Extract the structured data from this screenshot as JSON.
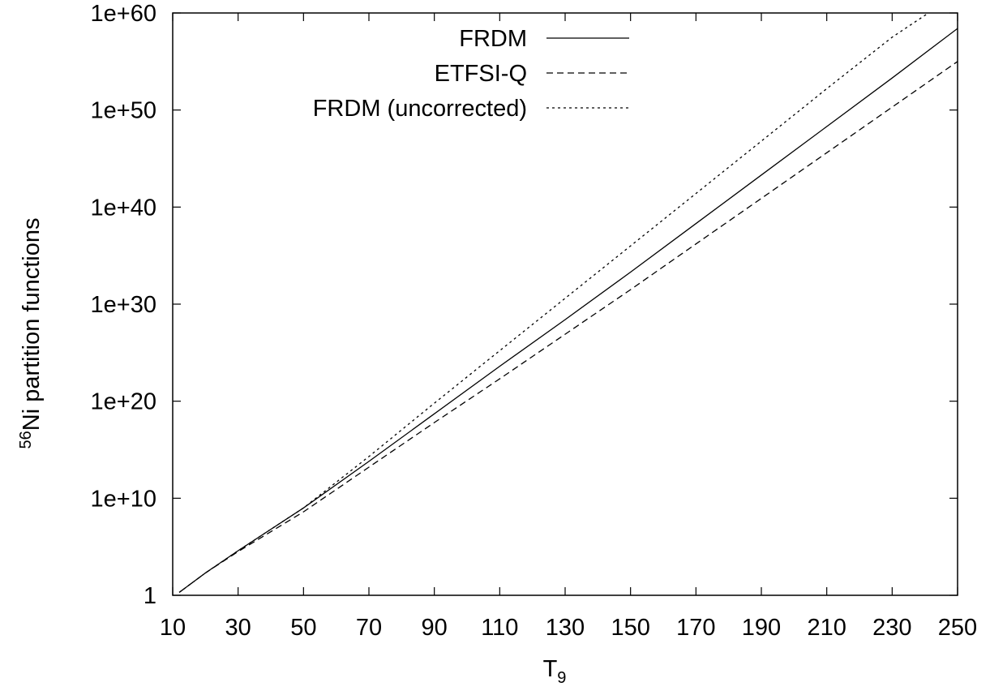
{
  "chart_data": {
    "type": "line",
    "title": "",
    "xlabel": {
      "main": "T",
      "sub": "9"
    },
    "ylabel": {
      "sup": "56",
      "main": "Ni partition functions"
    },
    "xlim": [
      10,
      250
    ],
    "ylim_log10": [
      0,
      60
    ],
    "yscale": "log",
    "grid": false,
    "legend_position": "top-center",
    "x_ticks": [
      10,
      30,
      50,
      70,
      90,
      110,
      130,
      150,
      170,
      190,
      210,
      230,
      250
    ],
    "x_tick_labels": [
      "10",
      "30",
      "50",
      "70",
      "90",
      "110",
      "130",
      "150",
      "170",
      "190",
      "210",
      "230",
      "250"
    ],
    "y_ticks_log10": [
      0,
      10,
      20,
      30,
      40,
      50,
      60
    ],
    "y_tick_labels": [
      "1",
      "1e+10",
      "1e+20",
      "1e+30",
      "1e+40",
      "1e+50",
      "1e+60"
    ],
    "series": [
      {
        "name": "FRDM",
        "style": "solid",
        "x": [
          12,
          20,
          30,
          50,
          70,
          90,
          110,
          130,
          150,
          170,
          190,
          210,
          230,
          250
        ],
        "log10_y": [
          0.3,
          2.3,
          4.6,
          9.0,
          13.8,
          18.7,
          23.6,
          28.4,
          33.3,
          38.3,
          43.3,
          48.3,
          53.3,
          58.4
        ]
      },
      {
        "name": "ETFSI-Q",
        "style": "dashed",
        "x": [
          12,
          20,
          30,
          50,
          70,
          90,
          110,
          130,
          150,
          170,
          190,
          210,
          230,
          250
        ],
        "log10_y": [
          0.3,
          2.3,
          4.5,
          8.6,
          13.2,
          17.8,
          22.3,
          26.9,
          31.5,
          36.2,
          40.9,
          45.6,
          50.3,
          55.0
        ]
      },
      {
        "name": "FRDM (uncorrected)",
        "style": "dotted",
        "x": [
          12,
          20,
          30,
          50,
          70,
          90,
          110,
          130,
          150,
          170,
          190,
          210,
          230,
          250
        ],
        "log10_y": [
          0.3,
          2.3,
          4.6,
          9.0,
          14.3,
          19.8,
          25.2,
          30.6,
          36.0,
          41.4,
          46.8,
          52.2,
          57.5,
          62.0
        ]
      }
    ]
  }
}
